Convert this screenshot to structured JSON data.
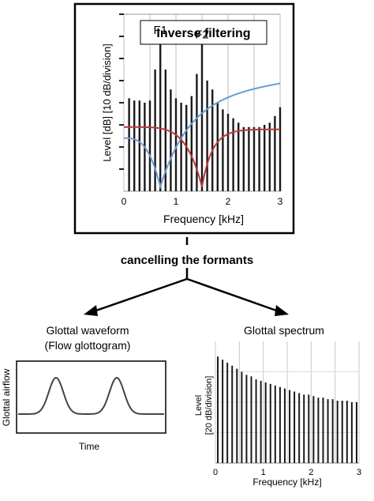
{
  "inverse_filtering": {
    "title": "Inverse filtering",
    "formant_labels": [
      "F1",
      "F2"
    ],
    "colors": {
      "bars": "#1a1a1a",
      "filter_f1": "#6b9bd1",
      "filter_f2": "#b83a3a",
      "grid": "#bdbdbd"
    },
    "chart_data": {
      "type": "bar",
      "xlabel": "Frequency [kHz]",
      "ylabel": "Level [dB] [10 dB/division]",
      "xlim": [
        0,
        3
      ],
      "x_ticks": [
        "0",
        "1",
        "2",
        "3"
      ],
      "grid": true,
      "harmonic_spacing_khz": 0.1,
      "series": [
        {
          "values": [
            42,
            41,
            41,
            40,
            41,
            55,
            69,
            55,
            46,
            42,
            40,
            39,
            43,
            53,
            67,
            50,
            46,
            40,
            37,
            35,
            33,
            31,
            29,
            29,
            29,
            29,
            30,
            31,
            34,
            38
          ]
        }
      ],
      "filter_curves": [
        {
          "color": "blue",
          "notch_khz": 0.7
        },
        {
          "color": "red",
          "notch_khz": 1.5
        }
      ]
    }
  },
  "arrow_caption": "cancelling the formants",
  "waveform": {
    "title_line1": "Glottal waveform",
    "title_line2": "(Flow glottogram)",
    "ylabel": "Glottal airflow",
    "xlabel": "Time"
  },
  "glottal_spectrum": {
    "title": "Glottal spectrum",
    "chart_data": {
      "type": "bar",
      "xlabel": "Frequency [kHz]",
      "ylabel_line1": "Level",
      "ylabel_line2": "[20 dB/division]",
      "xlim": [
        0,
        3
      ],
      "x_ticks": [
        "0",
        "1",
        "2",
        "3"
      ],
      "grid": true,
      "harmonic_spacing_khz": 0.1,
      "series": [
        {
          "values": [
            70,
            68,
            66,
            64,
            62,
            60,
            58,
            57,
            55,
            54,
            53,
            52,
            51,
            50,
            49,
            48,
            47,
            46,
            45,
            45,
            44,
            43,
            43,
            42,
            42,
            41,
            41,
            41,
            40,
            40
          ]
        }
      ]
    }
  }
}
